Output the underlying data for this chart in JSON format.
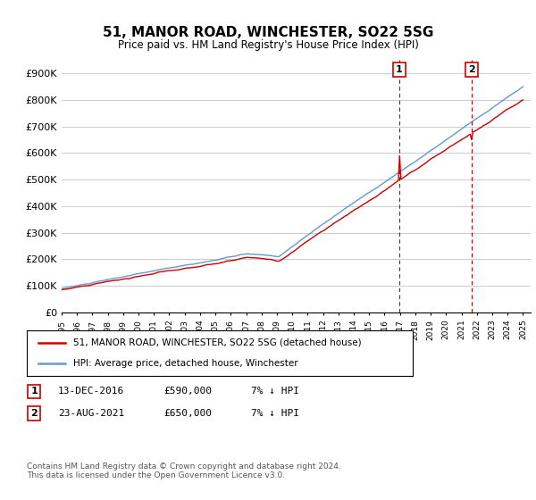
{
  "title": "51, MANOR ROAD, WINCHESTER, SO22 5SG",
  "subtitle": "Price paid vs. HM Land Registry's House Price Index (HPI)",
  "ylabel_ticks": [
    "£0",
    "£100K",
    "£200K",
    "£300K",
    "£400K",
    "£500K",
    "£600K",
    "£700K",
    "£800K",
    "£900K"
  ],
  "ytick_values": [
    0,
    100000,
    200000,
    300000,
    400000,
    500000,
    600000,
    700000,
    800000,
    900000
  ],
  "ylim": [
    0,
    950000
  ],
  "x_start_year": 1995,
  "x_end_year": 2025,
  "marker1": {
    "year": 2016.95,
    "label": "1",
    "value": 590000,
    "date": "13-DEC-2016",
    "desc": "7% ↓ HPI"
  },
  "marker2": {
    "year": 2021.65,
    "label": "2",
    "value": 650000,
    "date": "23-AUG-2021",
    "desc": "7% ↓ HPI"
  },
  "legend_line1": "51, MANOR ROAD, WINCHESTER, SO22 5SG (detached house)",
  "legend_line2": "HPI: Average price, detached house, Winchester",
  "table_row1": [
    "1",
    "13-DEC-2016",
    "£590,000",
    "7% ↓ HPI"
  ],
  "table_row2": [
    "2",
    "23-AUG-2021",
    "£650,000",
    "7% ↓ HPI"
  ],
  "footer": "Contains HM Land Registry data © Crown copyright and database right 2024.\nThis data is licensed under the Open Government Licence v3.0.",
  "line_color_red": "#cc0000",
  "line_color_blue": "#6699cc",
  "bg_color": "#ffffff",
  "grid_color": "#cccccc",
  "dashed_color": "#cc0000"
}
